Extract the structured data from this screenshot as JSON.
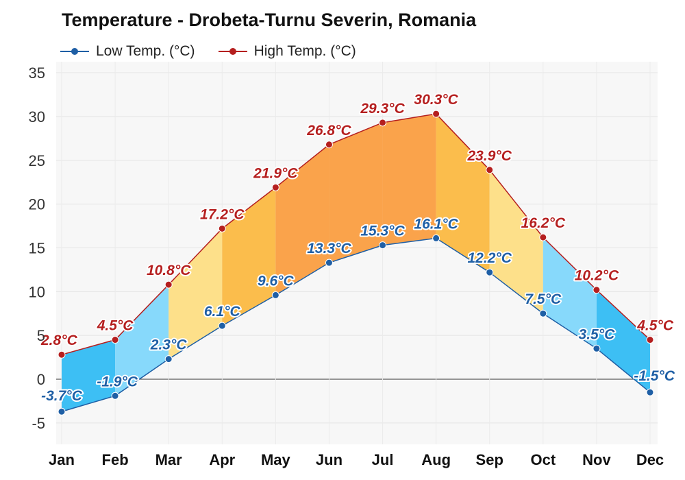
{
  "chart_data": {
    "type": "area",
    "title": "Temperature - Drobeta-Turnu Severin, Romania",
    "categories": [
      "Jan",
      "Feb",
      "Mar",
      "Apr",
      "May",
      "Jun",
      "Jul",
      "Aug",
      "Sep",
      "Oct",
      "Nov",
      "Dec"
    ],
    "series": [
      {
        "name": "Low Temp. (°C)",
        "color": "#1f5fa5",
        "values": [
          -3.7,
          -1.9,
          2.3,
          6.1,
          9.6,
          13.3,
          15.3,
          16.1,
          12.2,
          7.5,
          3.5,
          -1.5
        ],
        "labels": [
          "-3.7°C",
          "-1.9°C",
          "2.3°C",
          "6.1°C",
          "9.6°C",
          "13.3°C",
          "15.3°C",
          "16.1°C",
          "12.2°C",
          "7.5°C",
          "3.5°C",
          "-1.5°C"
        ]
      },
      {
        "name": "High Temp. (°C)",
        "color": "#b51f1f",
        "values": [
          2.8,
          4.5,
          10.8,
          17.2,
          21.9,
          26.8,
          29.3,
          30.3,
          23.9,
          16.2,
          10.2,
          4.5
        ],
        "labels": [
          "2.8°C",
          "4.5°C",
          "10.8°C",
          "17.2°C",
          "21.9°C",
          "26.8°C",
          "29.3°C",
          "30.3°C",
          "23.9°C",
          "16.2°C",
          "10.2°C",
          "4.5°C"
        ]
      }
    ],
    "y_ticks": [
      -5,
      0,
      5,
      10,
      15,
      20,
      25,
      30,
      35
    ],
    "y_tick_labels": [
      "-5",
      "0",
      "5",
      "10",
      "15",
      "20",
      "25",
      "30",
      "35"
    ],
    "ylim": [
      -7,
      35
    ],
    "grid": true,
    "legend_position": "top-left",
    "band_colors": [
      "#3dbff4",
      "#87d9fb",
      "#fde08a",
      "#fbbd4c",
      "#faa34b",
      "#faa34b",
      "#faa34b",
      "#fbbd4c",
      "#fde08a",
      "#87d9fb",
      "#3dbff4"
    ]
  }
}
